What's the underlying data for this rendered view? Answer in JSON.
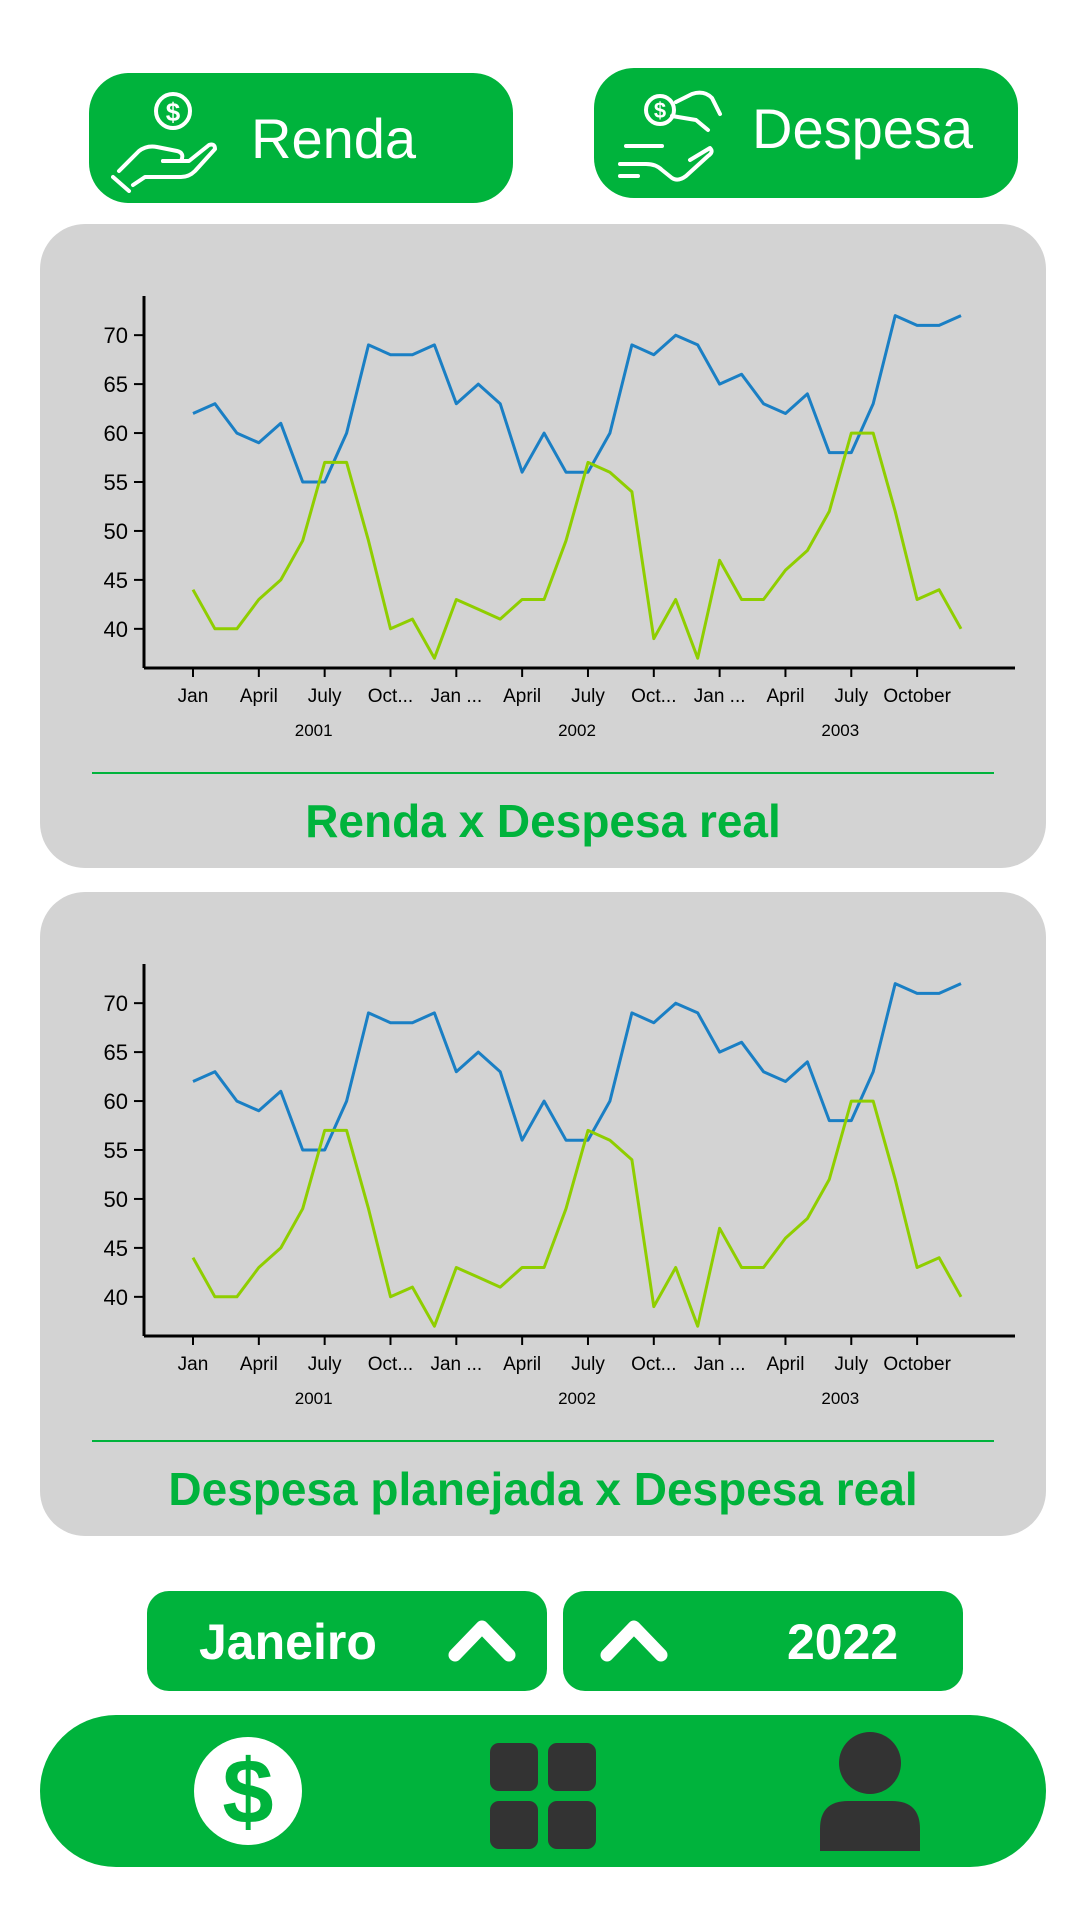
{
  "top_buttons": {
    "renda": {
      "label": "Renda",
      "icon": "hand-coin-icon"
    },
    "despesa": {
      "label": "Despesa",
      "icon": "coin-exchange-hands-icon"
    }
  },
  "cards": [
    {
      "title": "Renda x Despesa real"
    },
    {
      "title": "Despesa planejada x Despesa real"
    }
  ],
  "chart_data": [
    {
      "type": "line",
      "title": "Renda x Despesa real",
      "y_ticks": [
        40,
        45,
        50,
        55,
        60,
        65,
        70
      ],
      "ylim": [
        36,
        74
      ],
      "month_ticks": [
        "Jan",
        "April",
        "July",
        "Oct...",
        "Jan ...",
        "April",
        "July",
        "Oct...",
        "Jan ...",
        "April",
        "July",
        "October"
      ],
      "month_tick_positions": [
        0,
        3,
        6,
        9,
        12,
        15,
        18,
        21,
        24,
        27,
        30,
        33
      ],
      "year_labels": [
        "2001",
        "2002",
        "2003"
      ],
      "year_label_positions": [
        5.5,
        17.5,
        29.5
      ],
      "x_count": 36,
      "series": [
        {
          "color": "#1a7fc4",
          "values": [
            62,
            63,
            60,
            59,
            61,
            55,
            55,
            60,
            69,
            68,
            68,
            69,
            63,
            65,
            63,
            56,
            60,
            56,
            56,
            60,
            69,
            68,
            70,
            69,
            65,
            66,
            63,
            62,
            64,
            58,
            58,
            63,
            72,
            71,
            71,
            72
          ]
        },
        {
          "color": "#8fce00",
          "values": [
            44,
            40,
            40,
            43,
            45,
            49,
            57,
            57,
            49,
            40,
            41,
            37,
            43,
            42,
            41,
            43,
            43,
            49,
            57,
            56,
            54,
            39,
            43,
            37,
            47,
            43,
            43,
            46,
            48,
            52,
            60,
            60,
            52,
            43,
            44,
            40
          ]
        }
      ]
    },
    {
      "type": "line",
      "title": "Despesa planejada x Despesa real",
      "y_ticks": [
        40,
        45,
        50,
        55,
        60,
        65,
        70
      ],
      "ylim": [
        36,
        74
      ],
      "month_ticks": [
        "Jan",
        "April",
        "July",
        "Oct...",
        "Jan ...",
        "April",
        "July",
        "Oct...",
        "Jan ...",
        "April",
        "July",
        "October"
      ],
      "month_tick_positions": [
        0,
        3,
        6,
        9,
        12,
        15,
        18,
        21,
        24,
        27,
        30,
        33
      ],
      "year_labels": [
        "2001",
        "2002",
        "2003"
      ],
      "year_label_positions": [
        5.5,
        17.5,
        29.5
      ],
      "x_count": 36,
      "series": [
        {
          "color": "#1a7fc4",
          "values": [
            62,
            63,
            60,
            59,
            61,
            55,
            55,
            60,
            69,
            68,
            68,
            69,
            63,
            65,
            63,
            56,
            60,
            56,
            56,
            60,
            69,
            68,
            70,
            69,
            65,
            66,
            63,
            62,
            64,
            58,
            58,
            63,
            72,
            71,
            71,
            72
          ]
        },
        {
          "color": "#8fce00",
          "values": [
            44,
            40,
            40,
            43,
            45,
            49,
            57,
            57,
            49,
            40,
            41,
            37,
            43,
            42,
            41,
            43,
            43,
            49,
            57,
            56,
            54,
            39,
            43,
            37,
            47,
            43,
            43,
            46,
            48,
            52,
            60,
            60,
            52,
            43,
            44,
            40
          ]
        }
      ]
    }
  ],
  "selectors": {
    "month": {
      "value": "Janeiro",
      "icon": "chevron-up-icon"
    },
    "year": {
      "value": "2022",
      "icon": "chevron-up-icon"
    }
  },
  "bottom_nav": {
    "items": [
      {
        "icon": "dollar-circle-icon"
      },
      {
        "icon": "grid-icon"
      },
      {
        "icon": "user-icon"
      }
    ]
  },
  "colors": {
    "accent": "#00b33c",
    "card_bg": "#d3d3d3",
    "series_1": "#1a7fc4",
    "series_2": "#8fce00"
  }
}
